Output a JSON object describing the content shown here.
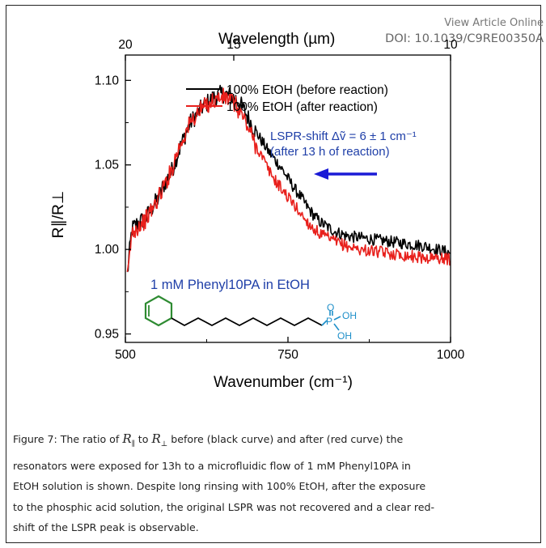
{
  "header": {
    "view_article": "View Article Online",
    "doi": "DOI: 10.1039/C9RE00350A"
  },
  "chart_data": {
    "type": "line",
    "xlabel": "Wavenumber (cm⁻¹)",
    "top_xlabel": "Wavelength (µm)",
    "ylabel": "R∥/R⊥",
    "xlim": [
      500,
      1000
    ],
    "ylim": [
      0.945,
      1.115
    ],
    "x_ticks": [
      "500",
      "750",
      "1000"
    ],
    "top_ticks": [
      {
        "label": "20",
        "value": 20
      },
      {
        "label": "15",
        "value": 15
      },
      {
        "label": "10",
        "value": 10
      }
    ],
    "y_ticks": [
      "0.95",
      "1.00",
      "1.05",
      "1.10"
    ],
    "legend": "top-left",
    "annotations": {
      "shift_line1": "LSPR-shift Δṽ = 6 ± 1 cm⁻¹",
      "shift_line2": "(after 13 h of reaction)",
      "molecule_label": "1 mM Phenyl10PA in EtOH",
      "phosphonic_o": "O",
      "phosphonic_p": "P",
      "phosphonic_oh1": "OH",
      "phosphonic_oh2": "OH"
    },
    "series": [
      {
        "name": "100% EtOH (before reaction)",
        "color": "#000000",
        "x": [
          503,
          510,
          520,
          530,
          540,
          550,
          560,
          570,
          580,
          590,
          600,
          610,
          620,
          630,
          640,
          650,
          660,
          670,
          680,
          690,
          700,
          710,
          720,
          730,
          740,
          750,
          760,
          770,
          780,
          790,
          800,
          820,
          840,
          860,
          880,
          900,
          920,
          940,
          960,
          980,
          1000
        ],
        "y": [
          0.985,
          1.012,
          1.016,
          1.018,
          1.024,
          1.03,
          1.039,
          1.045,
          1.056,
          1.066,
          1.075,
          1.08,
          1.085,
          1.088,
          1.091,
          1.092,
          1.091,
          1.089,
          1.084,
          1.077,
          1.07,
          1.064,
          1.058,
          1.053,
          1.048,
          1.042,
          1.036,
          1.031,
          1.025,
          1.02,
          1.016,
          1.011,
          1.008,
          1.007,
          1.006,
          1.005,
          1.004,
          1.003,
          1.002,
          1.0,
          0.998
        ]
      },
      {
        "name": "100% EtOH (after reaction)",
        "color": "#e8201c",
        "x": [
          503,
          510,
          520,
          530,
          540,
          550,
          560,
          570,
          580,
          590,
          600,
          610,
          620,
          630,
          640,
          650,
          660,
          670,
          680,
          690,
          700,
          710,
          720,
          730,
          740,
          750,
          760,
          770,
          780,
          790,
          800,
          820,
          840,
          860,
          880,
          900,
          920,
          940,
          960,
          980,
          1000
        ],
        "y": [
          0.982,
          1.01,
          1.014,
          1.017,
          1.023,
          1.03,
          1.038,
          1.046,
          1.058,
          1.067,
          1.075,
          1.08,
          1.084,
          1.087,
          1.089,
          1.09,
          1.089,
          1.085,
          1.079,
          1.071,
          1.062,
          1.055,
          1.047,
          1.041,
          1.036,
          1.031,
          1.026,
          1.021,
          1.016,
          1.012,
          1.009,
          1.005,
          1.002,
          1.0,
          0.999,
          0.998,
          0.997,
          0.996,
          0.995,
          0.995,
          0.994
        ]
      }
    ],
    "colors": {
      "annotation": "#1f3fa8",
      "arrow": "#1a1ad6",
      "ring": "#2e8b32",
      "phosphonic": "#1e8fc9"
    }
  },
  "caption": {
    "lines": [
      "Figure 7: The ratio of R∥ to R⊥ before (black curve) and after (red curve) the",
      "resonators were exposed for 13h to a microfluidic flow of 1 mM Phenyl10PA in",
      "EtOH solution is shown. Despite long rinsing with 100% EtOH, after the exposure",
      "to the phosphic acid solution, the original LSPR was not recovered and a clear red-",
      "shift of the LSPR peak is observable."
    ]
  }
}
